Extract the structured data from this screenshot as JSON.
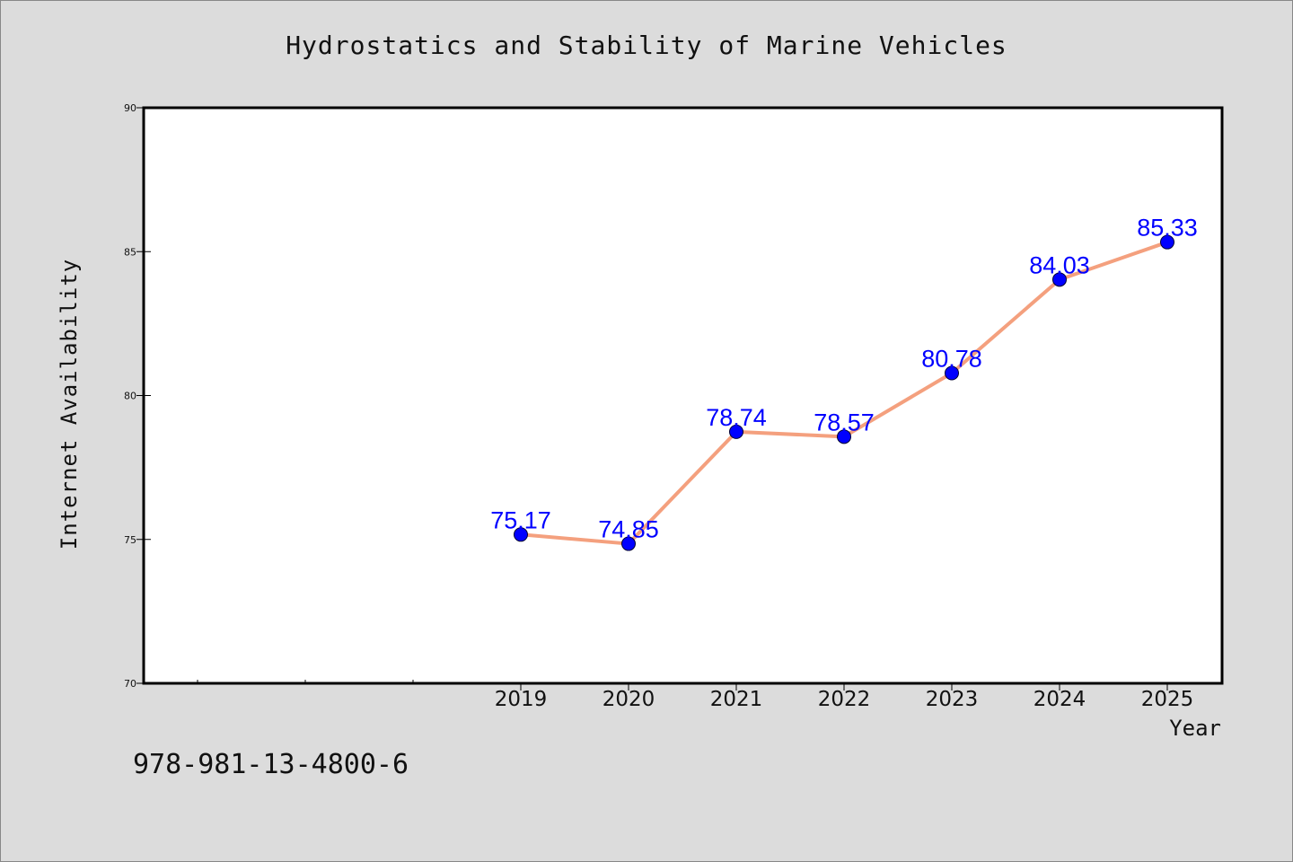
{
  "chart_data": {
    "type": "line",
    "title": "Hydrostatics and Stability of Marine Vehicles",
    "xlabel": "Year",
    "ylabel": "Internet Availability",
    "x": [
      "2019",
      "2020",
      "2021",
      "2022",
      "2023",
      "2024",
      "2025"
    ],
    "series": [
      {
        "values": [
          75.17,
          74.85,
          78.74,
          78.57,
          80.78,
          84.03,
          85.33
        ],
        "line_color": "#f4a07e",
        "marker_color": "#0000ff"
      }
    ],
    "data_labels": [
      "75.17",
      "74.85",
      "78.74",
      "78.57",
      "80.78",
      "84.03",
      "85.33"
    ],
    "ylim": [
      70,
      90
    ],
    "y_ticks": [
      "70",
      "75",
      "80",
      "85",
      "90"
    ],
    "grid": false,
    "legend": "none"
  },
  "footer": {
    "isbn": "978-981-13-4800-6"
  },
  "colors": {
    "background": "#dcdcdc",
    "plot_background": "#ffffff",
    "line": "#f4a07e",
    "marker": "#0000ff",
    "data_label": "#0000ff"
  }
}
